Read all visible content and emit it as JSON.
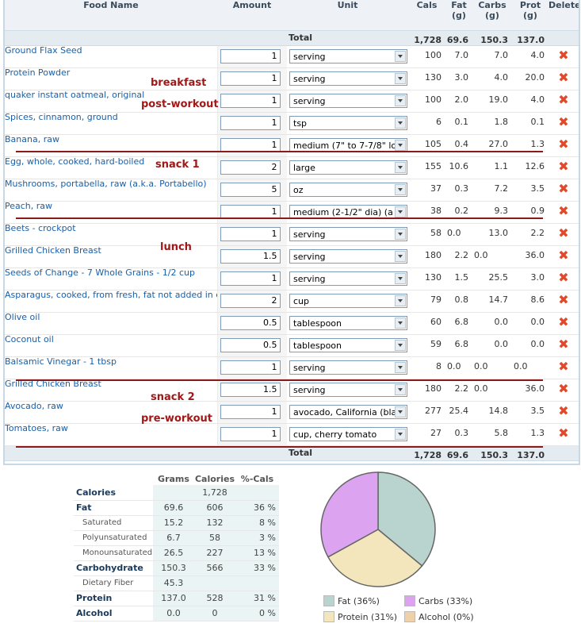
{
  "headers": {
    "food_name": "Food Name",
    "amount": "Amount",
    "unit": "Unit",
    "cals": "Cals",
    "fat_1": "Fat",
    "fat_2": "(g)",
    "carbs_1": "Carbs",
    "carbs_2": "(g)",
    "prot_1": "Prot",
    "prot_2": "(g)",
    "delete": "Delete"
  },
  "totals": {
    "label": "Total",
    "cals": "1,728",
    "fat": "69.6",
    "carbs": "150.3",
    "prot": "137.0"
  },
  "foods": [
    {
      "name": "Ground Flax Seed",
      "amount": "1",
      "unit": "serving",
      "cals": "100",
      "fat": "7.0",
      "carbs": "7.0",
      "prot": "4.0"
    },
    {
      "name": "Protein Powder",
      "amount": "1",
      "unit": "serving",
      "cals": "130",
      "fat": "3.0",
      "carbs": "4.0",
      "prot": "20.0"
    },
    {
      "name": "quaker instant oatmeal, original",
      "amount": "1",
      "unit": "serving",
      "cals": "100",
      "fat": "2.0",
      "carbs": "19.0",
      "prot": "4.0"
    },
    {
      "name": "Spices, cinnamon, ground",
      "amount": "1",
      "unit": "tsp",
      "cals": "6",
      "fat": "0.1",
      "carbs": "1.8",
      "prot": "0.1"
    },
    {
      "name": "Banana, raw",
      "amount": "1",
      "unit": "medium (7\" to 7-7/8\" lo",
      "cals": "105",
      "fat": "0.4",
      "carbs": "27.0",
      "prot": "1.3"
    },
    {
      "name": "Egg, whole, cooked, hard-boiled",
      "amount": "2",
      "unit": "large",
      "cals": "155",
      "fat": "10.6",
      "carbs": "1.1",
      "prot": "12.6"
    },
    {
      "name": "Mushrooms, portabella, raw (a.k.a. Portabello)",
      "amount": "5",
      "unit": "oz",
      "cals": "37",
      "fat": "0.3",
      "carbs": "7.2",
      "prot": "3.5"
    },
    {
      "name": "Peach, raw",
      "amount": "1",
      "unit": "medium (2-1/2\" dia) (a",
      "cals": "38",
      "fat": "0.2",
      "carbs": "9.3",
      "prot": "0.9"
    },
    {
      "name": "Beets - crockpot",
      "amount": "1",
      "unit": "serving",
      "cals": "58",
      "fat": "0.0",
      "carbs": "13.0",
      "prot": "2.2"
    },
    {
      "name": "Grilled Chicken Breast",
      "amount": "1.5",
      "unit": "serving",
      "cals": "180",
      "fat": "2.2",
      "carbs": "0.0",
      "prot": "36.0"
    },
    {
      "name": "Seeds of Change - 7 Whole Grains - 1/2 cup",
      "amount": "1",
      "unit": "serving",
      "cals": "130",
      "fat": "1.5",
      "carbs": "25.5",
      "prot": "3.0"
    },
    {
      "name": "Asparagus, cooked, from fresh, fat not added in cooking",
      "amount": "2",
      "unit": "cup",
      "cals": "79",
      "fat": "0.8",
      "carbs": "14.7",
      "prot": "8.6"
    },
    {
      "name": "Olive oil",
      "amount": "0.5",
      "unit": "tablespoon",
      "cals": "60",
      "fat": "6.8",
      "carbs": "0.0",
      "prot": "0.0"
    },
    {
      "name": "Coconut oil",
      "amount": "0.5",
      "unit": "tablespoon",
      "cals": "59",
      "fat": "6.8",
      "carbs": "0.0",
      "prot": "0.0"
    },
    {
      "name": "Balsamic Vinegar - 1 tbsp",
      "amount": "1",
      "unit": "serving",
      "cals": "8",
      "fat": "0.0",
      "carbs": "0.0",
      "prot": "0.0"
    },
    {
      "name": "Grilled Chicken Breast",
      "amount": "1.5",
      "unit": "serving",
      "cals": "180",
      "fat": "2.2",
      "carbs": "0.0",
      "prot": "36.0"
    },
    {
      "name": "Avocado, raw",
      "amount": "1",
      "unit": "avocado, California (bla",
      "cals": "277",
      "fat": "25.4",
      "carbs": "14.8",
      "prot": "3.5"
    },
    {
      "name": "Tomatoes, raw",
      "amount": "1",
      "unit": "cup, cherry tomato",
      "cals": "27",
      "fat": "0.3",
      "carbs": "5.8",
      "prot": "1.3"
    }
  ],
  "annotations": {
    "breakfast": "breakfast",
    "post_workout": "post-workout",
    "snack1": "snack 1",
    "lunch": "lunch",
    "snack2": "snack 2",
    "pre_workout": "pre-workout"
  },
  "macro": {
    "headers": {
      "grams": "Grams",
      "calories": "Calories",
      "pct": "%-Cals"
    },
    "rows": [
      {
        "label": "Calories",
        "grams": "",
        "calories": "1,728",
        "pct": ""
      },
      {
        "label": "Fat",
        "grams": "69.6",
        "calories": "606",
        "pct": "36 %"
      },
      {
        "label": "Saturated",
        "grams": "15.2",
        "calories": "132",
        "pct": "8 %"
      },
      {
        "label": "Polyunsaturated",
        "grams": "6.7",
        "calories": "58",
        "pct": "3 %"
      },
      {
        "label": "Monounsaturated",
        "grams": "26.5",
        "calories": "227",
        "pct": "13 %"
      },
      {
        "label": "Carbohydrate",
        "grams": "150.3",
        "calories": "566",
        "pct": "33 %"
      },
      {
        "label": "Dietary Fiber",
        "grams": "45.3",
        "calories": "",
        "pct": ""
      },
      {
        "label": "Protein",
        "grams": "137.0",
        "calories": "528",
        "pct": "31 %"
      },
      {
        "label": "Alcohol",
        "grams": "0.0",
        "calories": "0",
        "pct": "0 %"
      }
    ]
  },
  "pie": {
    "slices": [
      {
        "name": "Fat",
        "percent": 36,
        "color": "#b9d3cf"
      },
      {
        "name": "Carbs",
        "percent": 33,
        "color": "#dca3f0"
      },
      {
        "name": "Protein",
        "percent": 31,
        "color": "#f3e6bd"
      },
      {
        "name": "Alcohol",
        "percent": 0,
        "color": "#f0d0a8"
      }
    ],
    "legend": {
      "fat": "Fat  (36%)",
      "carbs": "Carbs  (33%)",
      "protein": "Protein  (31%)",
      "alcohol": "Alcohol  (0%)"
    }
  },
  "colors": {
    "link": "#1a5fa8",
    "annotation": "#a01818",
    "delete": "#e04a2a",
    "header_bg": "#eef2f6",
    "total_bg": "#e4ecf2"
  }
}
